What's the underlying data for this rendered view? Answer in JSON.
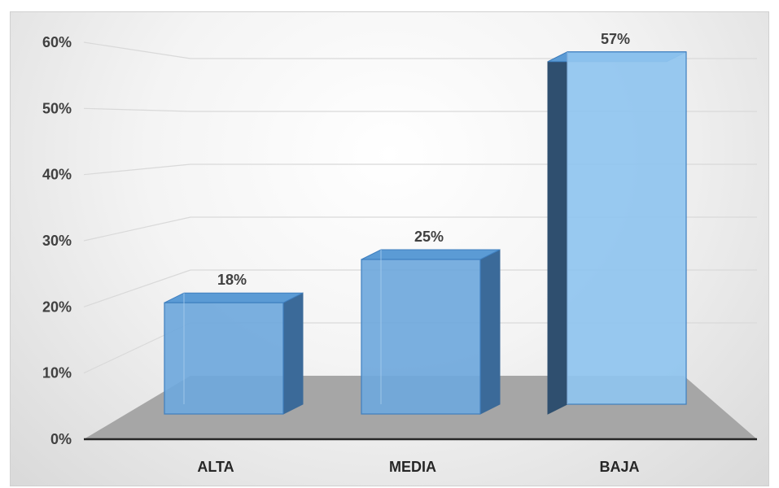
{
  "chart_data": {
    "type": "bar",
    "title": "",
    "xlabel": "",
    "ylabel": "",
    "categories": [
      "ALTA",
      "MEDIA",
      "BAJA"
    ],
    "values": [
      18,
      25,
      57
    ],
    "data_labels": [
      "18%",
      "25%",
      "57%"
    ],
    "ylim": [
      0,
      60
    ],
    "yticks": [
      "0%",
      "10%",
      "20%",
      "30%",
      "40%",
      "50%",
      "60%"
    ],
    "style": "3d-bar",
    "grid": true,
    "legend": "none",
    "colors": {
      "bar_front": "#6fa8dc",
      "bar_side": "#3b6a99",
      "bar_top": "#5b9bd5",
      "floor": "#a6a6a6",
      "gridline": "#d9d9d9",
      "axis": "#262626"
    }
  }
}
